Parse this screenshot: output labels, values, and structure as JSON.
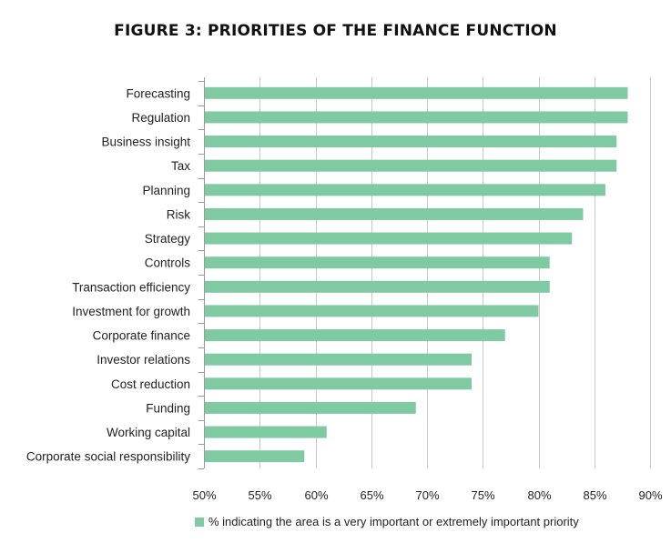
{
  "title": "FIGURE 3: PRIORITIES OF THE FINANCE FUNCTION",
  "colors": {
    "bar": "#7fcaa2",
    "grid": "#c8c8c8",
    "axis": "#999999",
    "text": "#222222"
  },
  "chart_data": {
    "type": "bar",
    "orientation": "horizontal",
    "title": "FIGURE 3: PRIORITIES OF THE FINANCE FUNCTION",
    "categories": [
      "Forecasting",
      "Regulation",
      "Business insight",
      "Tax",
      "Planning",
      "Risk",
      "Strategy",
      "Controls",
      "Transaction efficiency",
      "Investment for growth",
      "Corporate finance",
      "Investor relations",
      "Cost reduction",
      "Funding",
      "Working capital",
      "Corporate social responsibility"
    ],
    "series": [
      {
        "name": "% indicating the area is a very important or extremely important priority",
        "values": [
          88,
          88,
          87,
          87,
          86,
          84,
          83,
          81,
          81,
          80,
          77,
          74,
          74,
          69,
          61,
          59
        ]
      }
    ],
    "xlim": [
      50,
      90
    ],
    "xticks": [
      50,
      55,
      60,
      65,
      70,
      75,
      80,
      85,
      90
    ],
    "xtick_labels": [
      "50%",
      "55%",
      "60%",
      "65%",
      "70%",
      "75%",
      "80%",
      "85%",
      "90%"
    ],
    "grid": true,
    "legend_position": "bottom"
  }
}
